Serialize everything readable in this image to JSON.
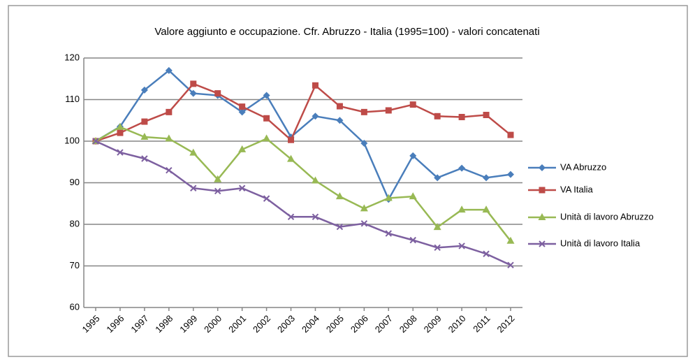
{
  "chart_data": {
    "type": "line",
    "title": "Valore aggiunto e occupazione. Cfr. Abruzzo - Italia (1995=100)  - valori concatenati",
    "categories": [
      "1995",
      "1996",
      "1997",
      "1998",
      "1999",
      "2000",
      "2001",
      "2002",
      "2003",
      "2004",
      "2005",
      "2006",
      "2007",
      "2008",
      "2009",
      "2010",
      "2011",
      "2012"
    ],
    "series": [
      {
        "name": "VA Abruzzo",
        "color": "#4a7ebb",
        "marker": "diamond",
        "values": [
          100,
          103.5,
          112.3,
          117,
          111.5,
          111,
          107,
          111,
          101,
          106,
          105,
          99.5,
          86,
          96.5,
          91.2,
          93.5,
          91.2,
          92
        ]
      },
      {
        "name": "VA Italia",
        "color": "#be4b48",
        "marker": "square",
        "values": [
          100,
          102,
          104.7,
          107,
          113.8,
          111.5,
          108.3,
          105.5,
          100.3,
          113.4,
          108.4,
          107,
          107.4,
          108.8,
          106,
          105.8,
          106.3,
          101.5
        ]
      },
      {
        "name": "Unità di lavoro Abruzzo",
        "color": "#98b954",
        "marker": "triangle",
        "values": [
          100,
          103.4,
          101,
          100.6,
          97.2,
          90.8,
          98,
          100.6,
          95.7,
          90.5,
          86.7,
          83.8,
          86.3,
          86.7,
          79.3,
          83.5,
          83.5,
          76
        ]
      },
      {
        "name": "Unità di lavoro Italia",
        "color": "#7d60a0",
        "marker": "x",
        "values": [
          100,
          97.3,
          95.8,
          93,
          88.7,
          88,
          88.7,
          86.2,
          81.8,
          81.8,
          79.4,
          80.2,
          77.8,
          76.2,
          74.4,
          74.8,
          72.9,
          70.2
        ]
      }
    ],
    "ylim": [
      60,
      120
    ],
    "yticks": [
      60,
      70,
      80,
      90,
      100,
      110,
      120
    ],
    "grid": true,
    "legend": "right"
  }
}
